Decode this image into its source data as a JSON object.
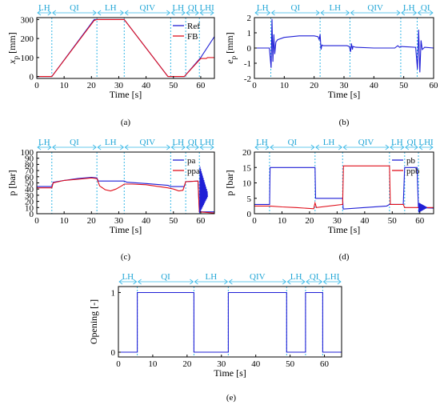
{
  "colors": {
    "ref": "#1f1fd6",
    "fb": "#e0101c",
    "phase": "#35b7e6",
    "axis": "#000000"
  },
  "chart_data": [
    {
      "id": "a",
      "type": "line",
      "caption": "(a)",
      "xlabel": "Time [s]",
      "ylabel": "x",
      "ylabel_sub": "p",
      "ylabel_unit": "[mm]",
      "xlim": [
        0,
        65
      ],
      "ylim": [
        -10,
        310
      ],
      "xticks": [
        0,
        10,
        20,
        30,
        40,
        50,
        60
      ],
      "yticks": [
        0,
        100,
        200,
        300
      ],
      "phases": [
        "LH",
        "QI",
        "LH",
        "QIV",
        "LH",
        "QI",
        "LHI"
      ],
      "phase_bounds": [
        0,
        5.5,
        22,
        32,
        49,
        54.5,
        59.5,
        65
      ],
      "legend": [
        "Ref",
        "FB"
      ],
      "series": [
        {
          "name": "Ref",
          "color": "#1f1fd6",
          "points": [
            [
              0,
              0
            ],
            [
              5.5,
              0
            ],
            [
              21,
              300
            ],
            [
              32,
              300
            ],
            [
              48,
              0
            ],
            [
              54,
              0
            ],
            [
              60,
              100
            ],
            [
              65,
              210
            ]
          ]
        },
        {
          "name": "FB",
          "color": "#e0101c",
          "points": [
            [
              0,
              0
            ],
            [
              5.5,
              0
            ],
            [
              21,
              295
            ],
            [
              22,
              300
            ],
            [
              32,
              300
            ],
            [
              48,
              0
            ],
            [
              54,
              0
            ],
            [
              60,
              95
            ],
            [
              62,
              95
            ],
            [
              62.5,
              100
            ],
            [
              65,
              100
            ]
          ]
        }
      ]
    },
    {
      "id": "b",
      "type": "line",
      "caption": "(b)",
      "xlabel": "Time [s]",
      "ylabel": "e",
      "ylabel_sub": "p",
      "ylabel_unit": "[mm]",
      "xlim": [
        0,
        60
      ],
      "ylim": [
        -2,
        2
      ],
      "xticks": [
        0,
        10,
        20,
        30,
        40,
        50,
        60
      ],
      "yticks": [
        -2,
        -1,
        0,
        1,
        2
      ],
      "phases": [
        "LH",
        "QI",
        "LH",
        "QIV",
        "LH",
        "QI"
      ],
      "phase_bounds": [
        0,
        5.5,
        22,
        32,
        49,
        54.5,
        60
      ],
      "series": [
        {
          "name": "",
          "color": "#1f1fd6",
          "points": [
            [
              0,
              0
            ],
            [
              5,
              0
            ],
            [
              5.6,
              -1.3
            ],
            [
              5.9,
              1.9
            ],
            [
              6.2,
              -0.9
            ],
            [
              6.5,
              0.9
            ],
            [
              6.8,
              -0.4
            ],
            [
              7.2,
              0.4
            ],
            [
              7.8,
              0.55
            ],
            [
              10,
              0.7
            ],
            [
              15,
              0.8
            ],
            [
              20,
              0.8
            ],
            [
              21.3,
              0.75
            ],
            [
              21.7,
              0.55
            ],
            [
              22.0,
              0.9
            ],
            [
              22.3,
              -0.1
            ],
            [
              22.6,
              0.2
            ],
            [
              23,
              0.15
            ],
            [
              25,
              0.15
            ],
            [
              31,
              0.15
            ],
            [
              31.8,
              0.1
            ],
            [
              32.2,
              -0.25
            ],
            [
              32.5,
              0.3
            ],
            [
              32.8,
              -0.1
            ],
            [
              33,
              0.1
            ],
            [
              34,
              0.05
            ],
            [
              40,
              0
            ],
            [
              47,
              0
            ],
            [
              48,
              0.15
            ],
            [
              48.6,
              0.05
            ],
            [
              49,
              0.1
            ],
            [
              54,
              0.05
            ],
            [
              54.6,
              -1.4
            ],
            [
              55,
              1.2
            ],
            [
              55.4,
              -1.6
            ],
            [
              55.8,
              0.5
            ],
            [
              56.2,
              -0.1
            ],
            [
              57,
              0.05
            ],
            [
              60,
              0
            ]
          ]
        }
      ]
    },
    {
      "id": "c",
      "type": "line",
      "caption": "(c)",
      "xlabel": "Time [s]",
      "ylabel": "p [bar]",
      "xlim": [
        0,
        65
      ],
      "ylim": [
        0,
        100
      ],
      "xticks": [
        0,
        10,
        20,
        30,
        40,
        50,
        60
      ],
      "yticks": [
        0,
        10,
        20,
        30,
        40,
        50,
        60,
        70,
        80,
        90,
        100
      ],
      "phases": [
        "LH",
        "QI",
        "LH",
        "QIV",
        "LH",
        "QI",
        "LHI"
      ],
      "phase_bounds": [
        0,
        5.5,
        22,
        32,
        49,
        54.5,
        59.5,
        65
      ],
      "legend": [
        "pa",
        "ppa"
      ],
      "series": [
        {
          "name": "pa",
          "color": "#1f1fd6",
          "points": [
            [
              0,
              44
            ],
            [
              5.5,
              44
            ],
            [
              6,
              51
            ],
            [
              10,
              54
            ],
            [
              15,
              57
            ],
            [
              20,
              59
            ],
            [
              22,
              58
            ],
            [
              22.5,
              53
            ],
            [
              32,
              53
            ],
            [
              33,
              51
            ],
            [
              40,
              49
            ],
            [
              48,
              46
            ],
            [
              49,
              44
            ],
            [
              54,
              44
            ],
            [
              54.5,
              52
            ],
            [
              59,
              53
            ],
            [
              59.5,
              3
            ],
            [
              65,
              3
            ]
          ]
        },
        {
          "name": "ppa",
          "color": "#e0101c",
          "points": [
            [
              0,
              42
            ],
            [
              5.5,
              42
            ],
            [
              6,
              50
            ],
            [
              10,
              54
            ],
            [
              15,
              56
            ],
            [
              20,
              58
            ],
            [
              22,
              57
            ],
            [
              23,
              45
            ],
            [
              25,
              39
            ],
            [
              27,
              37
            ],
            [
              29,
              40
            ],
            [
              31,
              45
            ],
            [
              32,
              48
            ],
            [
              35,
              48
            ],
            [
              40,
              47
            ],
            [
              48,
              42
            ],
            [
              50,
              40
            ],
            [
              52,
              37
            ],
            [
              53.5,
              38
            ],
            [
              54.5,
              52
            ],
            [
              59,
              53
            ],
            [
              59.5,
              3
            ],
            [
              65,
              1
            ]
          ]
        }
      ]
    },
    {
      "id": "d",
      "type": "line",
      "caption": "(d)",
      "xlabel": "Time [s]",
      "ylabel": "p [bar]",
      "xlim": [
        0,
        65
      ],
      "ylim": [
        0,
        20
      ],
      "xticks": [
        0,
        10,
        20,
        30,
        40,
        50,
        60
      ],
      "yticks": [
        0,
        5,
        10,
        15,
        20
      ],
      "phases": [
        "LH",
        "QI",
        "LH",
        "QIV",
        "LH",
        "QI",
        "LHI"
      ],
      "phase_bounds": [
        0,
        5.5,
        22,
        32,
        49,
        54.5,
        59.5,
        65
      ],
      "legend": [
        "pb",
        "ppb"
      ],
      "series": [
        {
          "name": "pb",
          "color": "#1f1fd6",
          "points": [
            [
              0,
              3
            ],
            [
              5.5,
              3
            ],
            [
              5.7,
              15
            ],
            [
              22,
              15
            ],
            [
              22.2,
              5
            ],
            [
              32,
              5
            ],
            [
              32.2,
              1.5
            ],
            [
              40,
              2
            ],
            [
              48,
              2.5
            ],
            [
              49,
              3
            ],
            [
              54,
              3
            ],
            [
              54.5,
              15
            ],
            [
              59,
              15
            ],
            [
              59.5,
              2
            ],
            [
              65,
              1.8
            ]
          ]
        },
        {
          "name": "ppb",
          "color": "#e0101c",
          "points": [
            [
              0,
              2.5
            ],
            [
              5.5,
              2.5
            ],
            [
              10,
              2.2
            ],
            [
              15,
              2
            ],
            [
              21.5,
              1.6
            ],
            [
              22,
              3.5
            ],
            [
              22.5,
              2
            ],
            [
              32,
              3
            ],
            [
              32.3,
              15.5
            ],
            [
              49,
              15.5
            ],
            [
              49.3,
              3
            ],
            [
              54,
              3
            ],
            [
              54.5,
              2
            ],
            [
              59,
              2
            ],
            [
              59.5,
              2
            ],
            [
              65,
              2
            ]
          ]
        }
      ]
    },
    {
      "id": "e",
      "type": "line",
      "caption": "(e)",
      "xlabel": "Time [s]",
      "ylabel": "Opening [-]",
      "xlim": [
        0,
        65
      ],
      "ylim": [
        -0.08,
        1.1
      ],
      "xticks": [
        0,
        10,
        20,
        30,
        40,
        50,
        60
      ],
      "yticks": [
        0,
        1
      ],
      "phases": [
        "LH",
        "QI",
        "LH",
        "QIV",
        "LH",
        "QI",
        "LHI"
      ],
      "phase_bounds": [
        0,
        5.5,
        22,
        32,
        49,
        54.5,
        59.5,
        65
      ],
      "series": [
        {
          "name": "",
          "color": "#1f1fd6",
          "points": [
            [
              0,
              0
            ],
            [
              5.5,
              0
            ],
            [
              5.5,
              1
            ],
            [
              22,
              1
            ],
            [
              22,
              0
            ],
            [
              32,
              0
            ],
            [
              32,
              1
            ],
            [
              49,
              1
            ],
            [
              49,
              0
            ],
            [
              54.5,
              0
            ],
            [
              54.5,
              1
            ],
            [
              59.5,
              1
            ],
            [
              59.5,
              0
            ],
            [
              65,
              0
            ]
          ]
        }
      ]
    }
  ]
}
